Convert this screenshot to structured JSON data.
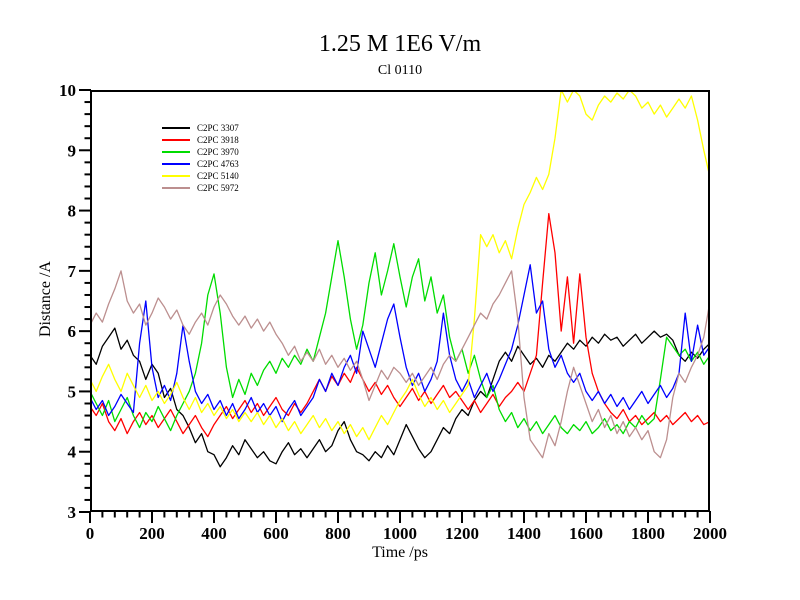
{
  "page": {
    "background": "#ffffff"
  },
  "chart_data": {
    "type": "line",
    "title": "1.25 M 1E6 V/m",
    "subtitle": "Cl 0110",
    "xlabel": "Time /ps",
    "ylabel": "Distance /A",
    "xlim": [
      0,
      2000
    ],
    "ylim": [
      3,
      10
    ],
    "x_major_step": 200,
    "x_minor_step": 40,
    "y_major_step": 1,
    "y_minor_step": 0.2,
    "x_tick_labels": [
      "0",
      "200",
      "400",
      "600",
      "800",
      "1000",
      "1200",
      "1400",
      "1600",
      "1800",
      "2000"
    ],
    "y_tick_labels": [
      "3",
      "4",
      "5",
      "6",
      "7",
      "8",
      "9",
      "10"
    ],
    "grid": false,
    "legend_position": "upper-left-inside",
    "axis_color": "#000000",
    "x_start": 0,
    "x_step": 20,
    "series": [
      {
        "name": "C2PC 3307",
        "color": "#000000",
        "values": [
          5.6,
          5.45,
          5.75,
          5.9,
          6.05,
          5.7,
          5.85,
          5.6,
          5.5,
          5.2,
          5.45,
          5.3,
          4.9,
          5.05,
          4.7,
          4.6,
          4.4,
          4.15,
          4.3,
          4.0,
          3.95,
          3.75,
          3.9,
          4.1,
          3.95,
          4.2,
          4.05,
          3.9,
          4.0,
          3.85,
          3.8,
          4.0,
          4.15,
          3.95,
          4.05,
          3.9,
          4.05,
          4.2,
          4.0,
          4.1,
          4.35,
          4.5,
          4.2,
          4.0,
          3.95,
          3.85,
          4.0,
          3.9,
          4.1,
          3.95,
          4.2,
          4.45,
          4.25,
          4.05,
          3.9,
          4.0,
          4.2,
          4.4,
          4.3,
          4.55,
          4.7,
          4.6,
          4.85,
          5.0,
          4.9,
          5.2,
          5.5,
          5.65,
          5.5,
          5.75,
          5.6,
          5.45,
          5.55,
          5.4,
          5.6,
          5.5,
          5.65,
          5.8,
          5.7,
          5.85,
          5.75,
          5.9,
          5.8,
          5.95,
          5.85,
          5.9,
          5.75,
          5.85,
          5.95,
          5.8,
          5.9,
          6.0,
          5.9,
          5.95,
          5.85,
          5.6,
          5.5,
          5.65,
          5.55,
          5.7,
          5.8
        ]
      },
      {
        "name": "C2PC 3918",
        "color": "#FF0000",
        "values": [
          4.75,
          4.6,
          4.8,
          4.5,
          4.35,
          4.55,
          4.3,
          4.5,
          4.65,
          4.45,
          4.6,
          4.4,
          4.55,
          4.7,
          4.5,
          4.3,
          4.45,
          4.6,
          4.4,
          4.25,
          4.45,
          4.6,
          4.75,
          4.55,
          4.7,
          4.85,
          4.65,
          4.8,
          4.6,
          4.75,
          4.9,
          4.7,
          4.6,
          4.8,
          4.65,
          4.8,
          5.0,
          5.2,
          5.0,
          5.25,
          5.1,
          5.3,
          5.15,
          5.4,
          5.2,
          5.0,
          5.15,
          4.95,
          5.1,
          4.9,
          4.75,
          4.9,
          5.05,
          4.85,
          5.0,
          4.8,
          4.95,
          5.1,
          4.9,
          5.0,
          4.85,
          4.7,
          4.85,
          4.65,
          4.8,
          4.95,
          4.75,
          4.9,
          5.0,
          5.15,
          5.0,
          5.3,
          5.6,
          6.8,
          7.95,
          7.3,
          6.0,
          6.9,
          5.8,
          6.95,
          5.9,
          5.3,
          5.0,
          4.8,
          4.65,
          4.55,
          4.7,
          4.5,
          4.6,
          4.45,
          4.55,
          4.65,
          4.5,
          4.6,
          4.45,
          4.55,
          4.65,
          4.5,
          4.6,
          4.45,
          4.5
        ]
      },
      {
        "name": "C2PC 3970",
        "color": "#00DC00",
        "values": [
          5.0,
          4.8,
          4.6,
          4.85,
          4.5,
          4.7,
          4.9,
          4.6,
          4.4,
          4.65,
          4.5,
          4.75,
          4.55,
          4.35,
          4.6,
          4.8,
          5.0,
          5.3,
          5.8,
          6.6,
          6.95,
          6.3,
          5.4,
          4.9,
          5.2,
          4.95,
          5.3,
          5.1,
          5.35,
          5.5,
          5.3,
          5.55,
          5.4,
          5.6,
          5.45,
          5.7,
          5.5,
          5.9,
          6.3,
          6.9,
          7.5,
          6.9,
          6.2,
          5.7,
          6.1,
          6.8,
          7.3,
          6.6,
          7.0,
          7.45,
          6.9,
          6.4,
          6.9,
          7.2,
          6.5,
          6.9,
          6.3,
          6.6,
          5.9,
          5.5,
          5.7,
          5.3,
          5.6,
          5.2,
          4.9,
          5.1,
          4.7,
          4.5,
          4.65,
          4.4,
          4.55,
          4.35,
          4.5,
          4.3,
          4.45,
          4.6,
          4.4,
          4.3,
          4.45,
          4.35,
          4.5,
          4.3,
          4.4,
          4.55,
          4.35,
          4.45,
          4.3,
          4.5,
          4.4,
          4.6,
          4.45,
          4.55,
          5.2,
          5.9,
          5.75,
          5.6,
          5.7,
          5.5,
          5.65,
          5.45,
          5.6
        ]
      },
      {
        "name": "C2PC 4763",
        "color": "#0000FF",
        "values": [
          4.9,
          4.7,
          4.85,
          4.6,
          4.75,
          4.95,
          4.8,
          4.65,
          5.8,
          6.5,
          5.4,
          4.9,
          5.1,
          4.85,
          5.3,
          6.1,
          5.5,
          5.0,
          4.8,
          4.95,
          4.7,
          4.85,
          4.6,
          4.8,
          4.55,
          4.7,
          4.9,
          4.65,
          4.8,
          4.6,
          4.75,
          4.5,
          4.7,
          4.85,
          4.6,
          4.75,
          4.9,
          5.2,
          5.0,
          5.3,
          5.1,
          5.4,
          5.6,
          5.3,
          6.0,
          5.7,
          5.4,
          5.8,
          6.2,
          6.45,
          5.9,
          5.4,
          5.1,
          5.3,
          5.0,
          5.2,
          5.5,
          6.3,
          5.6,
          5.2,
          5.0,
          5.2,
          4.9,
          5.1,
          5.3,
          5.0,
          5.2,
          5.45,
          5.7,
          6.1,
          6.6,
          7.1,
          6.3,
          6.5,
          5.7,
          5.4,
          5.6,
          5.3,
          5.15,
          5.3,
          5.0,
          4.85,
          5.0,
          4.8,
          4.95,
          4.75,
          4.9,
          4.7,
          4.85,
          5.0,
          4.8,
          4.95,
          5.1,
          4.9,
          5.05,
          5.3,
          6.3,
          5.5,
          6.1,
          5.6,
          5.75
        ]
      },
      {
        "name": "C2PC 5140",
        "color": "#FFFF00",
        "values": [
          5.2,
          5.0,
          5.25,
          5.45,
          5.2,
          5.0,
          5.3,
          5.1,
          4.9,
          5.1,
          4.85,
          5.0,
          4.8,
          4.95,
          5.15,
          4.9,
          4.7,
          4.9,
          4.65,
          4.8,
          4.6,
          4.75,
          4.55,
          4.7,
          4.5,
          4.65,
          4.5,
          4.65,
          4.45,
          4.6,
          4.4,
          4.55,
          4.35,
          4.5,
          4.3,
          4.45,
          4.6,
          4.4,
          4.55,
          4.35,
          4.5,
          4.3,
          4.45,
          4.25,
          4.4,
          4.2,
          4.4,
          4.6,
          4.45,
          4.65,
          4.85,
          5.0,
          5.2,
          4.95,
          4.75,
          4.9,
          4.7,
          4.85,
          4.65,
          4.8,
          4.95,
          5.1,
          6.2,
          7.6,
          7.4,
          7.6,
          7.3,
          7.5,
          7.2,
          7.7,
          8.1,
          8.3,
          8.55,
          8.35,
          8.6,
          9.2,
          10.0,
          9.8,
          10.0,
          9.9,
          9.6,
          9.5,
          9.75,
          9.9,
          9.8,
          9.95,
          9.85,
          10.0,
          9.9,
          9.7,
          9.8,
          9.6,
          9.75,
          9.55,
          9.7,
          9.85,
          9.7,
          9.9,
          9.5,
          9.0,
          8.55
        ]
      },
      {
        "name": "C2PC 5972",
        "color": "#BC8F8F",
        "values": [
          6.1,
          6.3,
          6.15,
          6.45,
          6.7,
          7.0,
          6.5,
          6.3,
          6.45,
          6.1,
          6.3,
          6.55,
          6.4,
          6.2,
          6.35,
          6.1,
          5.95,
          6.15,
          6.3,
          6.1,
          6.4,
          6.6,
          6.45,
          6.25,
          6.1,
          6.25,
          6.05,
          6.2,
          6.0,
          6.15,
          5.95,
          5.8,
          5.6,
          5.75,
          5.5,
          5.65,
          5.5,
          5.7,
          5.45,
          5.6,
          5.4,
          5.55,
          5.35,
          5.5,
          5.2,
          4.85,
          5.1,
          5.35,
          5.2,
          5.4,
          5.3,
          5.15,
          5.3,
          5.1,
          5.25,
          5.4,
          5.2,
          5.45,
          5.6,
          5.5,
          5.7,
          5.9,
          6.1,
          6.3,
          6.2,
          6.45,
          6.6,
          6.8,
          7.0,
          6.2,
          4.9,
          4.2,
          4.05,
          3.9,
          4.3,
          4.1,
          4.5,
          5.0,
          5.4,
          5.1,
          4.8,
          4.5,
          4.7,
          4.4,
          4.6,
          4.3,
          4.5,
          4.25,
          4.4,
          4.2,
          4.35,
          4.0,
          3.9,
          4.2,
          4.9,
          5.3,
          5.15,
          5.4,
          5.6,
          5.9,
          6.5
        ]
      }
    ]
  }
}
